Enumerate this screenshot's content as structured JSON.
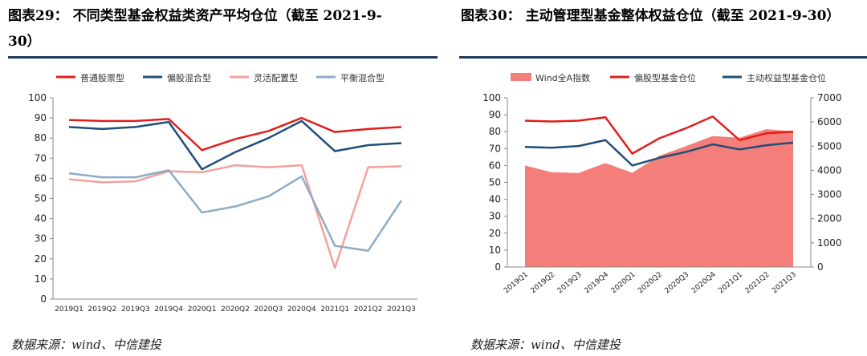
{
  "left": {
    "title_line1": "图表29： 不同类型基金权益类资产平均仓位（截至 2021-9-",
    "title_line2": "30）",
    "source": "数据来源：wind、中信建投",
    "chart_data": {
      "type": "line",
      "categories": [
        "2019Q1",
        "2019Q2",
        "2019Q3",
        "2019Q4",
        "2020Q1",
        "2020Q2",
        "2020Q3",
        "2020Q4",
        "2021Q1",
        "2021Q2",
        "2021Q3"
      ],
      "ylim": [
        0,
        100
      ],
      "yticks": [
        0,
        10,
        20,
        30,
        40,
        50,
        60,
        70,
        80,
        90,
        100
      ],
      "series": [
        {
          "name": "普通股票型",
          "color": "#e31d1c",
          "values": [
            89,
            88.5,
            88.5,
            89.5,
            74,
            79.5,
            83.5,
            90,
            83,
            84.5,
            85.5
          ]
        },
        {
          "name": "偏股混合型",
          "color": "#1f4e79",
          "values": [
            85.5,
            84.5,
            85.5,
            88,
            64.5,
            73,
            80,
            88.5,
            73.5,
            76.5,
            77.5
          ]
        },
        {
          "name": "灵活配置型",
          "color": "#f4a09c",
          "values": [
            59.5,
            58,
            58.5,
            63.5,
            63,
            66.5,
            65.5,
            66.5,
            15.5,
            65.5,
            66
          ]
        },
        {
          "name": "平衡混合型",
          "color": "#8eabc6",
          "values": [
            62.5,
            60.5,
            60.5,
            64,
            43,
            46,
            51,
            61,
            26.5,
            24,
            49
          ]
        }
      ]
    }
  },
  "right": {
    "title": "图表30： 主动管理型基金整体权益仓位（截至 2021-9-30）",
    "source": "数据来源：wind、中信建投",
    "chart_data": {
      "type": "line",
      "categories": [
        "2019Q1",
        "2019Q2",
        "2019Q3",
        "2019Q4",
        "2020Q1",
        "2020Q2",
        "2020Q3",
        "2020Q4",
        "2021Q1",
        "2021Q2",
        "2021Q3"
      ],
      "ylim_left": [
        0,
        100
      ],
      "yticks_left": [
        0,
        10,
        20,
        30,
        40,
        50,
        60,
        70,
        80,
        90,
        100
      ],
      "ylim_right": [
        0,
        7000
      ],
      "yticks_right": [
        0,
        1000,
        2000,
        3000,
        4000,
        5000,
        6000,
        7000
      ],
      "area_series": {
        "name": "Wind全A指数",
        "color": "#f47f7a",
        "axis": "right",
        "values": [
          4200,
          3920,
          3890,
          4300,
          3900,
          4600,
          5000,
          5420,
          5350,
          5700,
          5620
        ]
      },
      "series": [
        {
          "name": "偏股型基金仓位",
          "color": "#e31d1c",
          "axis": "left",
          "values": [
            86.5,
            86,
            86.5,
            88.5,
            67,
            76,
            82,
            89,
            75,
            79,
            80
          ]
        },
        {
          "name": "主动权益型基金仓位",
          "color": "#1f4e79",
          "axis": "left",
          "values": [
            71,
            70.5,
            71.5,
            75,
            60,
            64.5,
            68,
            72.5,
            69.5,
            72,
            73.5
          ]
        }
      ]
    }
  }
}
